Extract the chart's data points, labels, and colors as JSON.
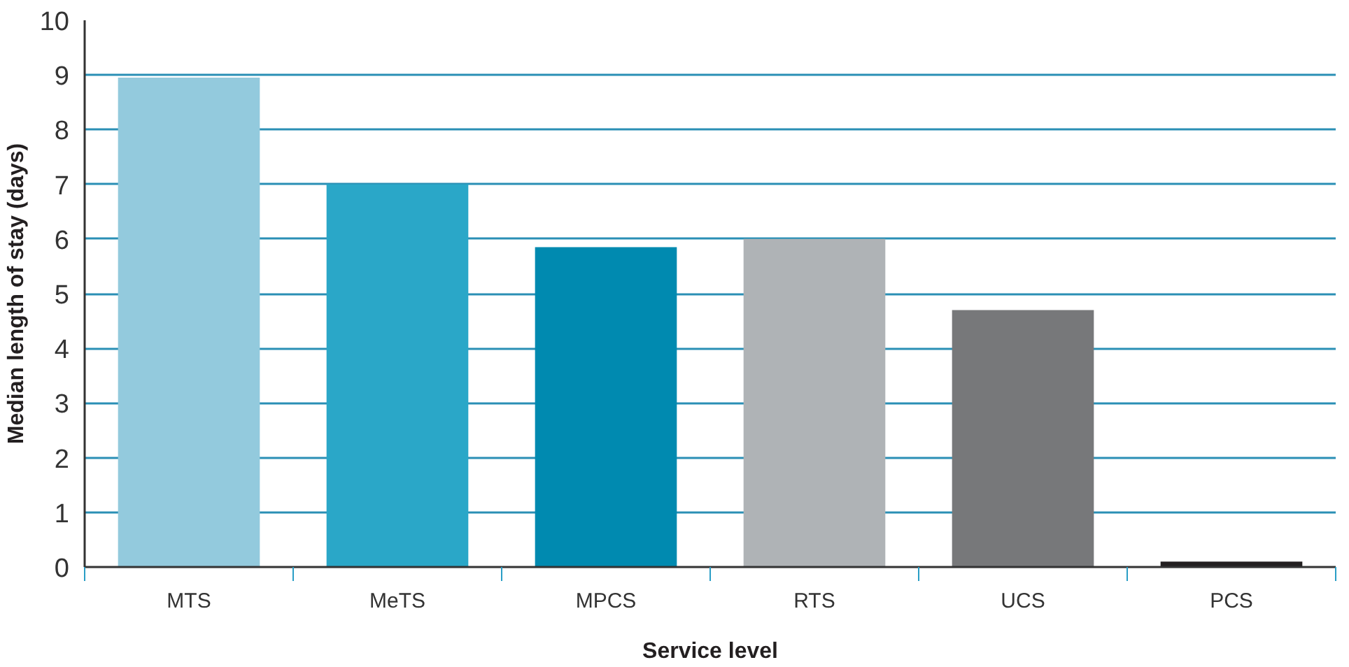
{
  "chart_data": {
    "type": "bar",
    "xlabel": "Service level",
    "ylabel": "Median length of stay (days)",
    "categories": [
      "MTS",
      "MeTS",
      "MPCS",
      "RTS",
      "UCS",
      "PCS"
    ],
    "values": [
      8.95,
      7.0,
      5.85,
      6.0,
      4.7,
      0.1
    ],
    "colors": [
      "#93cadd",
      "#2aa7c8",
      "#008ab0",
      "#afb3b6",
      "#77787a",
      "#231f20"
    ],
    "ylim": [
      0,
      10
    ],
    "yticks": [
      0,
      1,
      2,
      3,
      4,
      5,
      6,
      7,
      8,
      9,
      10
    ],
    "grid": "y"
  }
}
